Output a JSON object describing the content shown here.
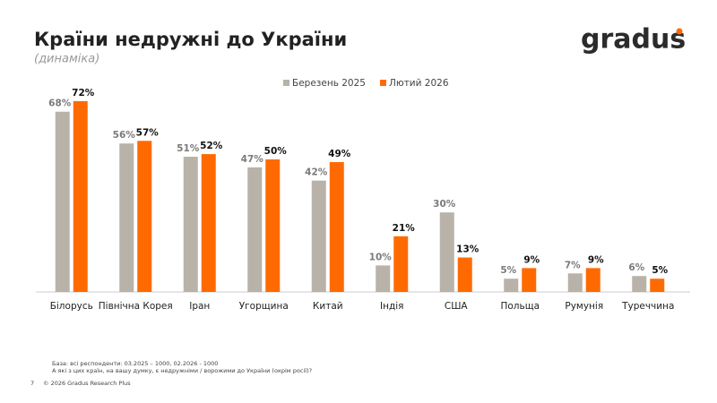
{
  "header": {
    "title": "Країни недружні до України",
    "subtitle": "(динаміка)",
    "logo": "gradus"
  },
  "chart_data": {
    "type": "bar",
    "categories": [
      "Білорусь",
      "Північна Корея",
      "Іран",
      "Угорщина",
      "Китай",
      "Індія",
      "США",
      "Польща",
      "Румунія",
      "Туреччина"
    ],
    "series": [
      {
        "name": "Березень 2025",
        "color": "#b8b2a8",
        "values": [
          68,
          56,
          51,
          47,
          42,
          10,
          30,
          5,
          7,
          6
        ],
        "value_labels": [
          "68%",
          "56%",
          "51%",
          "47%",
          "42%",
          "10%",
          "30%",
          "5%",
          "7%",
          "6%"
        ]
      },
      {
        "name": "Лютий 2026",
        "color": "#ff6a00",
        "values": [
          72,
          57,
          52,
          50,
          49,
          21,
          13,
          9,
          9,
          5
        ],
        "value_labels": [
          "72%",
          "57%",
          "52%",
          "50%",
          "49%",
          "21%",
          "13%",
          "9%",
          "9%",
          "5%"
        ]
      }
    ]
  },
  "footer": {
    "notes": [
      "База: всі респонденти: 03.2025 – 1000, 02.2026 - 1000",
      "А які з цих країн, на вашу думку, є недружніми / ворожими до України (окрім росії)?"
    ],
    "page": "7",
    "copyright": "© 2026 Gradus Research Plus"
  }
}
